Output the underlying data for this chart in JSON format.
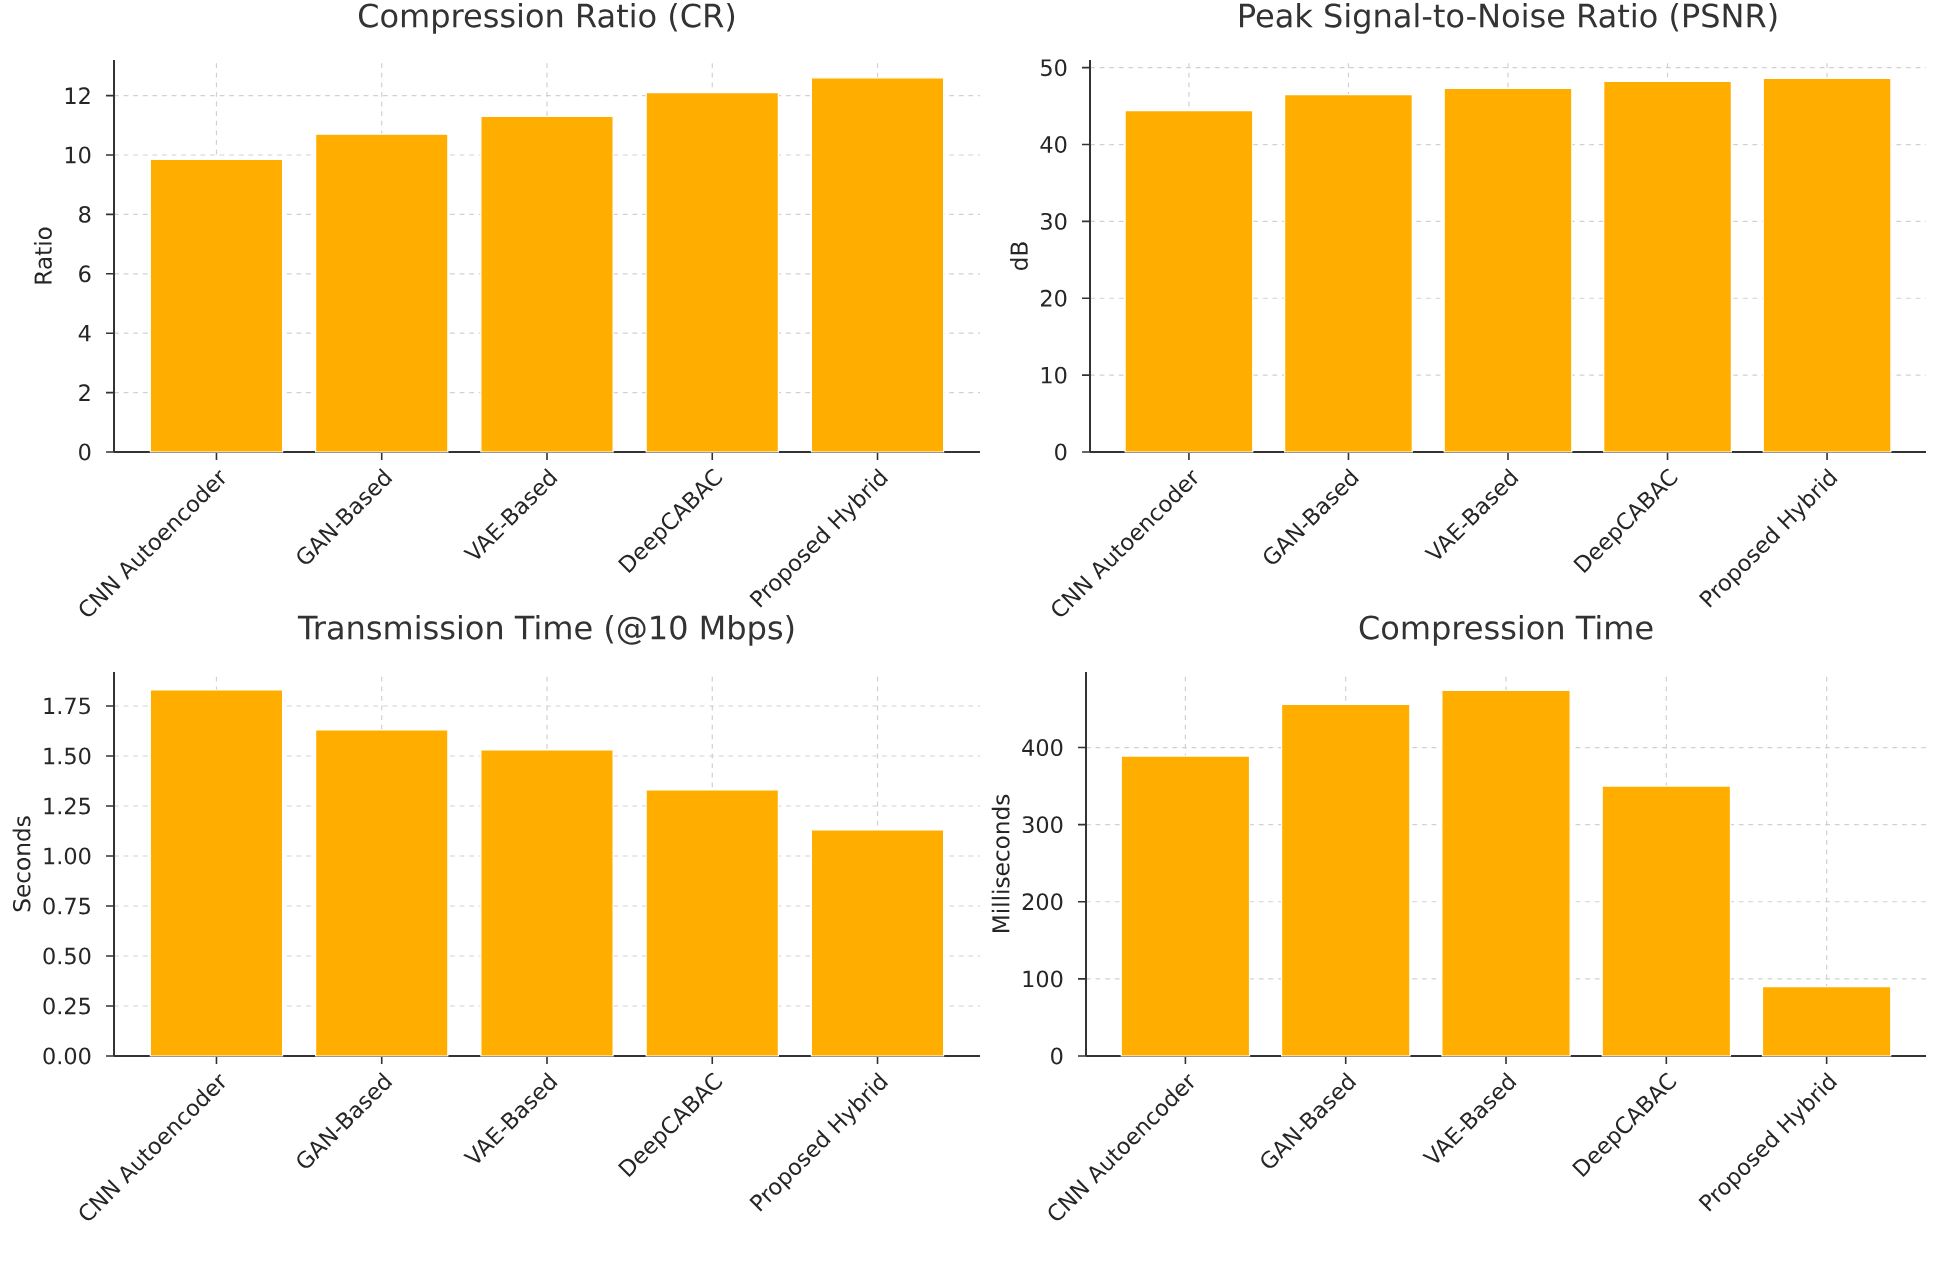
{
  "chart_data": [
    {
      "type": "bar",
      "title": "Compression Ratio (CR)",
      "ylabel": "Ratio",
      "categories": [
        "CNN Autoencoder",
        "GAN-Based",
        "VAE-Based",
        "DeepCABAC",
        "Proposed Hybrid"
      ],
      "values": [
        9.85,
        10.7,
        11.3,
        12.1,
        12.6
      ],
      "color": "#ffae00",
      "ylim": [
        0,
        13.2
      ],
      "yticks": [
        0,
        2,
        4,
        6,
        8,
        10,
        12
      ],
      "grid": true
    },
    {
      "type": "bar",
      "title": "Peak Signal-to-Noise Ratio (PSNR)",
      "ylabel": "dB",
      "categories": [
        "CNN Autoencoder",
        "GAN-Based",
        "VAE-Based",
        "DeepCABAC",
        "Proposed Hybrid"
      ],
      "values": [
        44.4,
        46.5,
        47.3,
        48.2,
        48.6
      ],
      "color": "#ffae00",
      "ylim": [
        0,
        51
      ],
      "yticks": [
        0,
        10,
        20,
        30,
        40,
        50
      ],
      "grid": true
    },
    {
      "type": "bar",
      "title": "Transmission Time (@10 Mbps)",
      "ylabel": "Seconds",
      "categories": [
        "CNN Autoencoder",
        "GAN-Based",
        "VAE-Based",
        "DeepCABAC",
        "Proposed Hybrid"
      ],
      "values": [
        1.83,
        1.63,
        1.53,
        1.33,
        1.13
      ],
      "color": "#ffae00",
      "ylim": [
        0,
        1.92
      ],
      "yticks": [
        {
          "value": 0,
          "label": "0.00"
        },
        {
          "value": 0.25,
          "label": "0.25"
        },
        {
          "value": 0.5,
          "label": "0.50"
        },
        {
          "value": 0.75,
          "label": "0.75"
        },
        {
          "value": 1,
          "label": "1.00"
        },
        {
          "value": 1.25,
          "label": "1.25"
        },
        {
          "value": 1.5,
          "label": "1.50"
        },
        {
          "value": 1.75,
          "label": "1.75"
        }
      ],
      "grid": true
    },
    {
      "type": "bar",
      "title": "Compression Time",
      "ylabel": "Milliseconds",
      "categories": [
        "CNN Autoencoder",
        "GAN-Based",
        "VAE-Based",
        "DeepCABAC",
        "Proposed Hybrid"
      ],
      "values": [
        389,
        456,
        474,
        350,
        90
      ],
      "color": "#ffae00",
      "ylim": [
        0,
        498
      ],
      "yticks": [
        0,
        100,
        200,
        300,
        400
      ],
      "grid": true
    }
  ]
}
